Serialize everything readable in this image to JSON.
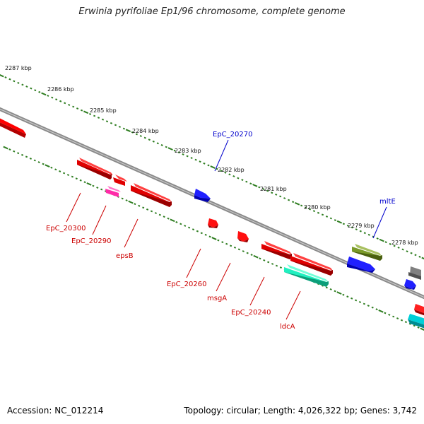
{
  "title": "Erwinia pyrifoliae Ep1/96 chromosome, complete genome",
  "footer": {
    "accession": "Accession: NC_012214",
    "topology_part": "Topology: circular; ",
    "length_part": "Length: 4,026,322 bp; ",
    "genes_part": "Genes: 3,742"
  },
  "colors": {
    "backbone": "#8a8a8a",
    "tick": "#2e7d20",
    "label_red": "#cc0000",
    "label_blue": "#0000cc",
    "gene_red": "#ff0000",
    "gene_blue": "#0000ff",
    "gene_magenta": "#ff2ba8",
    "gene_teal": "#20f0c0",
    "gene_olive": "#7a9a28",
    "gene_gray": "#707070",
    "gene_cyan": "#00d0d8"
  },
  "kbp_labels": [
    "2287 kbp",
    "2286 kbp",
    "2285 kbp",
    "2284 kbp",
    "2283 kbp",
    "2282 kbp",
    "2281 kbp",
    "2280 kbp",
    "2279 kbp",
    "2278 kbp"
  ],
  "gene_labels": {
    "EpC_20300": "EpC_20300",
    "EpC_20290": "EpC_20290",
    "epsB": "epsB",
    "EpC_20270": "EpC_20270",
    "EpC_20260": "EpC_20260",
    "msgA": "msgA",
    "EpC_20240": "EpC_20240",
    "ldcA": "ldcA",
    "mltE": "mltE"
  }
}
